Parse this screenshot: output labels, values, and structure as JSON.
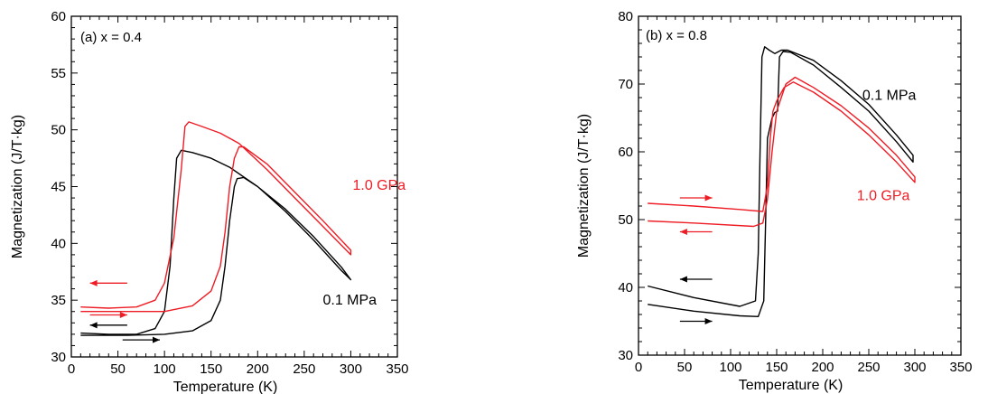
{
  "chart_data": [
    {
      "type": "line",
      "panel_label": "(a) x = 0.4",
      "xlabel": "Temperature (K)",
      "ylabel": "Magnetization (J/T·kg)",
      "xlim": [
        0,
        350
      ],
      "ylim": [
        30,
        60
      ],
      "xticks": [
        0,
        50,
        100,
        150,
        200,
        250,
        300,
        350
      ],
      "yticks": [
        30,
        35,
        40,
        45,
        50,
        55,
        60
      ],
      "xtick_labels": [
        "0",
        "50",
        "100",
        "150",
        "200",
        "250",
        "300",
        "350"
      ],
      "ytick_labels": [
        "30",
        "35",
        "40",
        "45",
        "50",
        "55",
        "60"
      ],
      "grid": false,
      "series": [
        {
          "name": "0.1 MPa",
          "color": "#000000",
          "points": [
            [
              10,
              32.1
            ],
            [
              40,
              32.0
            ],
            [
              70,
              32.0
            ],
            [
              90,
              32.5
            ],
            [
              100,
              34.0
            ],
            [
              106,
              38.0
            ],
            [
              110,
              44.0
            ],
            [
              113,
              47.5
            ],
            [
              118,
              48.2
            ],
            [
              130,
              48.0
            ],
            [
              150,
              47.5
            ],
            [
              170,
              46.7
            ],
            [
              200,
              45.0
            ],
            [
              230,
              42.8
            ],
            [
              260,
              40.3
            ],
            [
              290,
              37.6
            ],
            [
              300,
              36.8
            ],
            [
              290,
              37.9
            ],
            [
              260,
              40.6
            ],
            [
              230,
              43.0
            ],
            [
              200,
              45.0
            ],
            [
              185,
              45.8
            ],
            [
              178,
              45.7
            ],
            [
              175,
              45.0
            ],
            [
              170,
              42.0
            ],
            [
              165,
              38.0
            ],
            [
              160,
              35.0
            ],
            [
              150,
              33.2
            ],
            [
              130,
              32.3
            ],
            [
              100,
              32.0
            ],
            [
              60,
              31.9
            ],
            [
              10,
              31.9
            ]
          ]
        },
        {
          "name": "1.0 GPa",
          "color": "#ee1c24",
          "points": [
            [
              10,
              34.4
            ],
            [
              40,
              34.3
            ],
            [
              70,
              34.4
            ],
            [
              90,
              35.0
            ],
            [
              100,
              36.5
            ],
            [
              110,
              40.5
            ],
            [
              118,
              46.5
            ],
            [
              122,
              50.3
            ],
            [
              126,
              50.7
            ],
            [
              140,
              50.3
            ],
            [
              160,
              49.7
            ],
            [
              180,
              48.8
            ],
            [
              210,
              46.5
            ],
            [
              240,
              44.0
            ],
            [
              270,
              41.5
            ],
            [
              300,
              39.0
            ],
            [
              300,
              39.4
            ],
            [
              270,
              42.0
            ],
            [
              240,
              44.5
            ],
            [
              210,
              47.0
            ],
            [
              185,
              48.5
            ],
            [
              180,
              48.5
            ],
            [
              175,
              47.5
            ],
            [
              170,
              45.0
            ],
            [
              165,
              41.0
            ],
            [
              160,
              38.0
            ],
            [
              150,
              35.8
            ],
            [
              130,
              34.5
            ],
            [
              100,
              34.0
            ],
            [
              50,
              34.0
            ],
            [
              10,
              34.0
            ]
          ]
        }
      ],
      "annotations": [
        {
          "text": "1.0 GPa",
          "x": 302,
          "y": 45.2,
          "color": "#ee1c24"
        },
        {
          "text": "0.1 MPa",
          "x": 270,
          "y": 35.1,
          "color": "#000000"
        }
      ],
      "arrows": [
        {
          "color": "#ee1c24",
          "x1": 60,
          "x2": 20,
          "y": 36.5
        },
        {
          "color": "#ee1c24",
          "x1": 20,
          "x2": 60,
          "y": 33.7
        },
        {
          "color": "#000000",
          "x1": 60,
          "x2": 20,
          "y": 32.8
        },
        {
          "color": "#000000",
          "x1": 55,
          "x2": 95,
          "y": 31.5
        }
      ]
    },
    {
      "type": "line",
      "panel_label": "(b) x = 0.8",
      "xlabel": "Temperature (K)",
      "ylabel": "Magnetization (J/T·kg)",
      "xlim": [
        0,
        350
      ],
      "ylim": [
        30,
        80
      ],
      "xticks": [
        0,
        50,
        100,
        150,
        200,
        250,
        300,
        350
      ],
      "yticks": [
        30,
        40,
        50,
        60,
        70,
        80
      ],
      "xtick_labels": [
        "0",
        "50",
        "100",
        "150",
        "200",
        "250",
        "300",
        "350"
      ],
      "ytick_labels": [
        "30",
        "40",
        "50",
        "60",
        "70",
        "80"
      ],
      "grid": false,
      "series": [
        {
          "name": "0.1 MPa",
          "color": "#000000",
          "points": [
            [
              10,
              37.5
            ],
            [
              60,
              36.5
            ],
            [
              110,
              35.8
            ],
            [
              130,
              35.7
            ],
            [
              136,
              38.0
            ],
            [
              138,
              50.0
            ],
            [
              140,
              62.0
            ],
            [
              145,
              65.0
            ],
            [
              148,
              65.8
            ],
            [
              151,
              66.0
            ],
            [
              153,
              74.0
            ],
            [
              157,
              74.8
            ],
            [
              165,
              74.7
            ],
            [
              190,
              72.8
            ],
            [
              220,
              69.5
            ],
            [
              250,
              66.0
            ],
            [
              280,
              61.5
            ],
            [
              298,
              58.5
            ],
            [
              298,
              59.5
            ],
            [
              280,
              62.5
            ],
            [
              250,
              67.0
            ],
            [
              220,
              70.5
            ],
            [
              190,
              73.5
            ],
            [
              162,
              75.0
            ],
            [
              155,
              75.0
            ],
            [
              148,
              74.5
            ],
            [
              142,
              75.0
            ],
            [
              137,
              75.5
            ],
            [
              134,
              74.0
            ],
            [
              132,
              60.0
            ],
            [
              130,
              45.0
            ],
            [
              127,
              38.0
            ],
            [
              110,
              37.2
            ],
            [
              60,
              38.5
            ],
            [
              10,
              40.2
            ]
          ]
        },
        {
          "name": "1.0 GPa",
          "color": "#ee1c24",
          "points": [
            [
              10,
              52.4
            ],
            [
              60,
              52.0
            ],
            [
              110,
              51.5
            ],
            [
              135,
              51.2
            ],
            [
              140,
              55.0
            ],
            [
              143,
              62.0
            ],
            [
              146,
              66.0
            ],
            [
              150,
              67.5
            ],
            [
              158,
              69.5
            ],
            [
              168,
              70.3
            ],
            [
              190,
              68.8
            ],
            [
              220,
              66.0
            ],
            [
              250,
              62.5
            ],
            [
              280,
              58.5
            ],
            [
              300,
              55.5
            ],
            [
              300,
              56.3
            ],
            [
              280,
              59.5
            ],
            [
              250,
              63.5
            ],
            [
              220,
              66.8
            ],
            [
              190,
              69.5
            ],
            [
              170,
              71.0
            ],
            [
              160,
              70.0
            ],
            [
              150,
              66.0
            ],
            [
              145,
              60.0
            ],
            [
              140,
              53.0
            ],
            [
              135,
              49.5
            ],
            [
              125,
              49.0
            ],
            [
              60,
              49.5
            ],
            [
              10,
              49.8
            ]
          ]
        }
      ],
      "annotations": [
        {
          "text": "0.1 MPa",
          "x": 243,
          "y": 68.5,
          "color": "#000000"
        },
        {
          "text": "1.0 GPa",
          "x": 237,
          "y": 53.7,
          "color": "#ee1c24"
        }
      ],
      "arrows": [
        {
          "color": "#ee1c24",
          "x1": 45,
          "x2": 80,
          "y": 53.2
        },
        {
          "color": "#ee1c24",
          "x1": 80,
          "x2": 45,
          "y": 48.2
        },
        {
          "color": "#000000",
          "x1": 80,
          "x2": 45,
          "y": 41.2
        },
        {
          "color": "#000000",
          "x1": 45,
          "x2": 80,
          "y": 35.0
        }
      ]
    }
  ]
}
